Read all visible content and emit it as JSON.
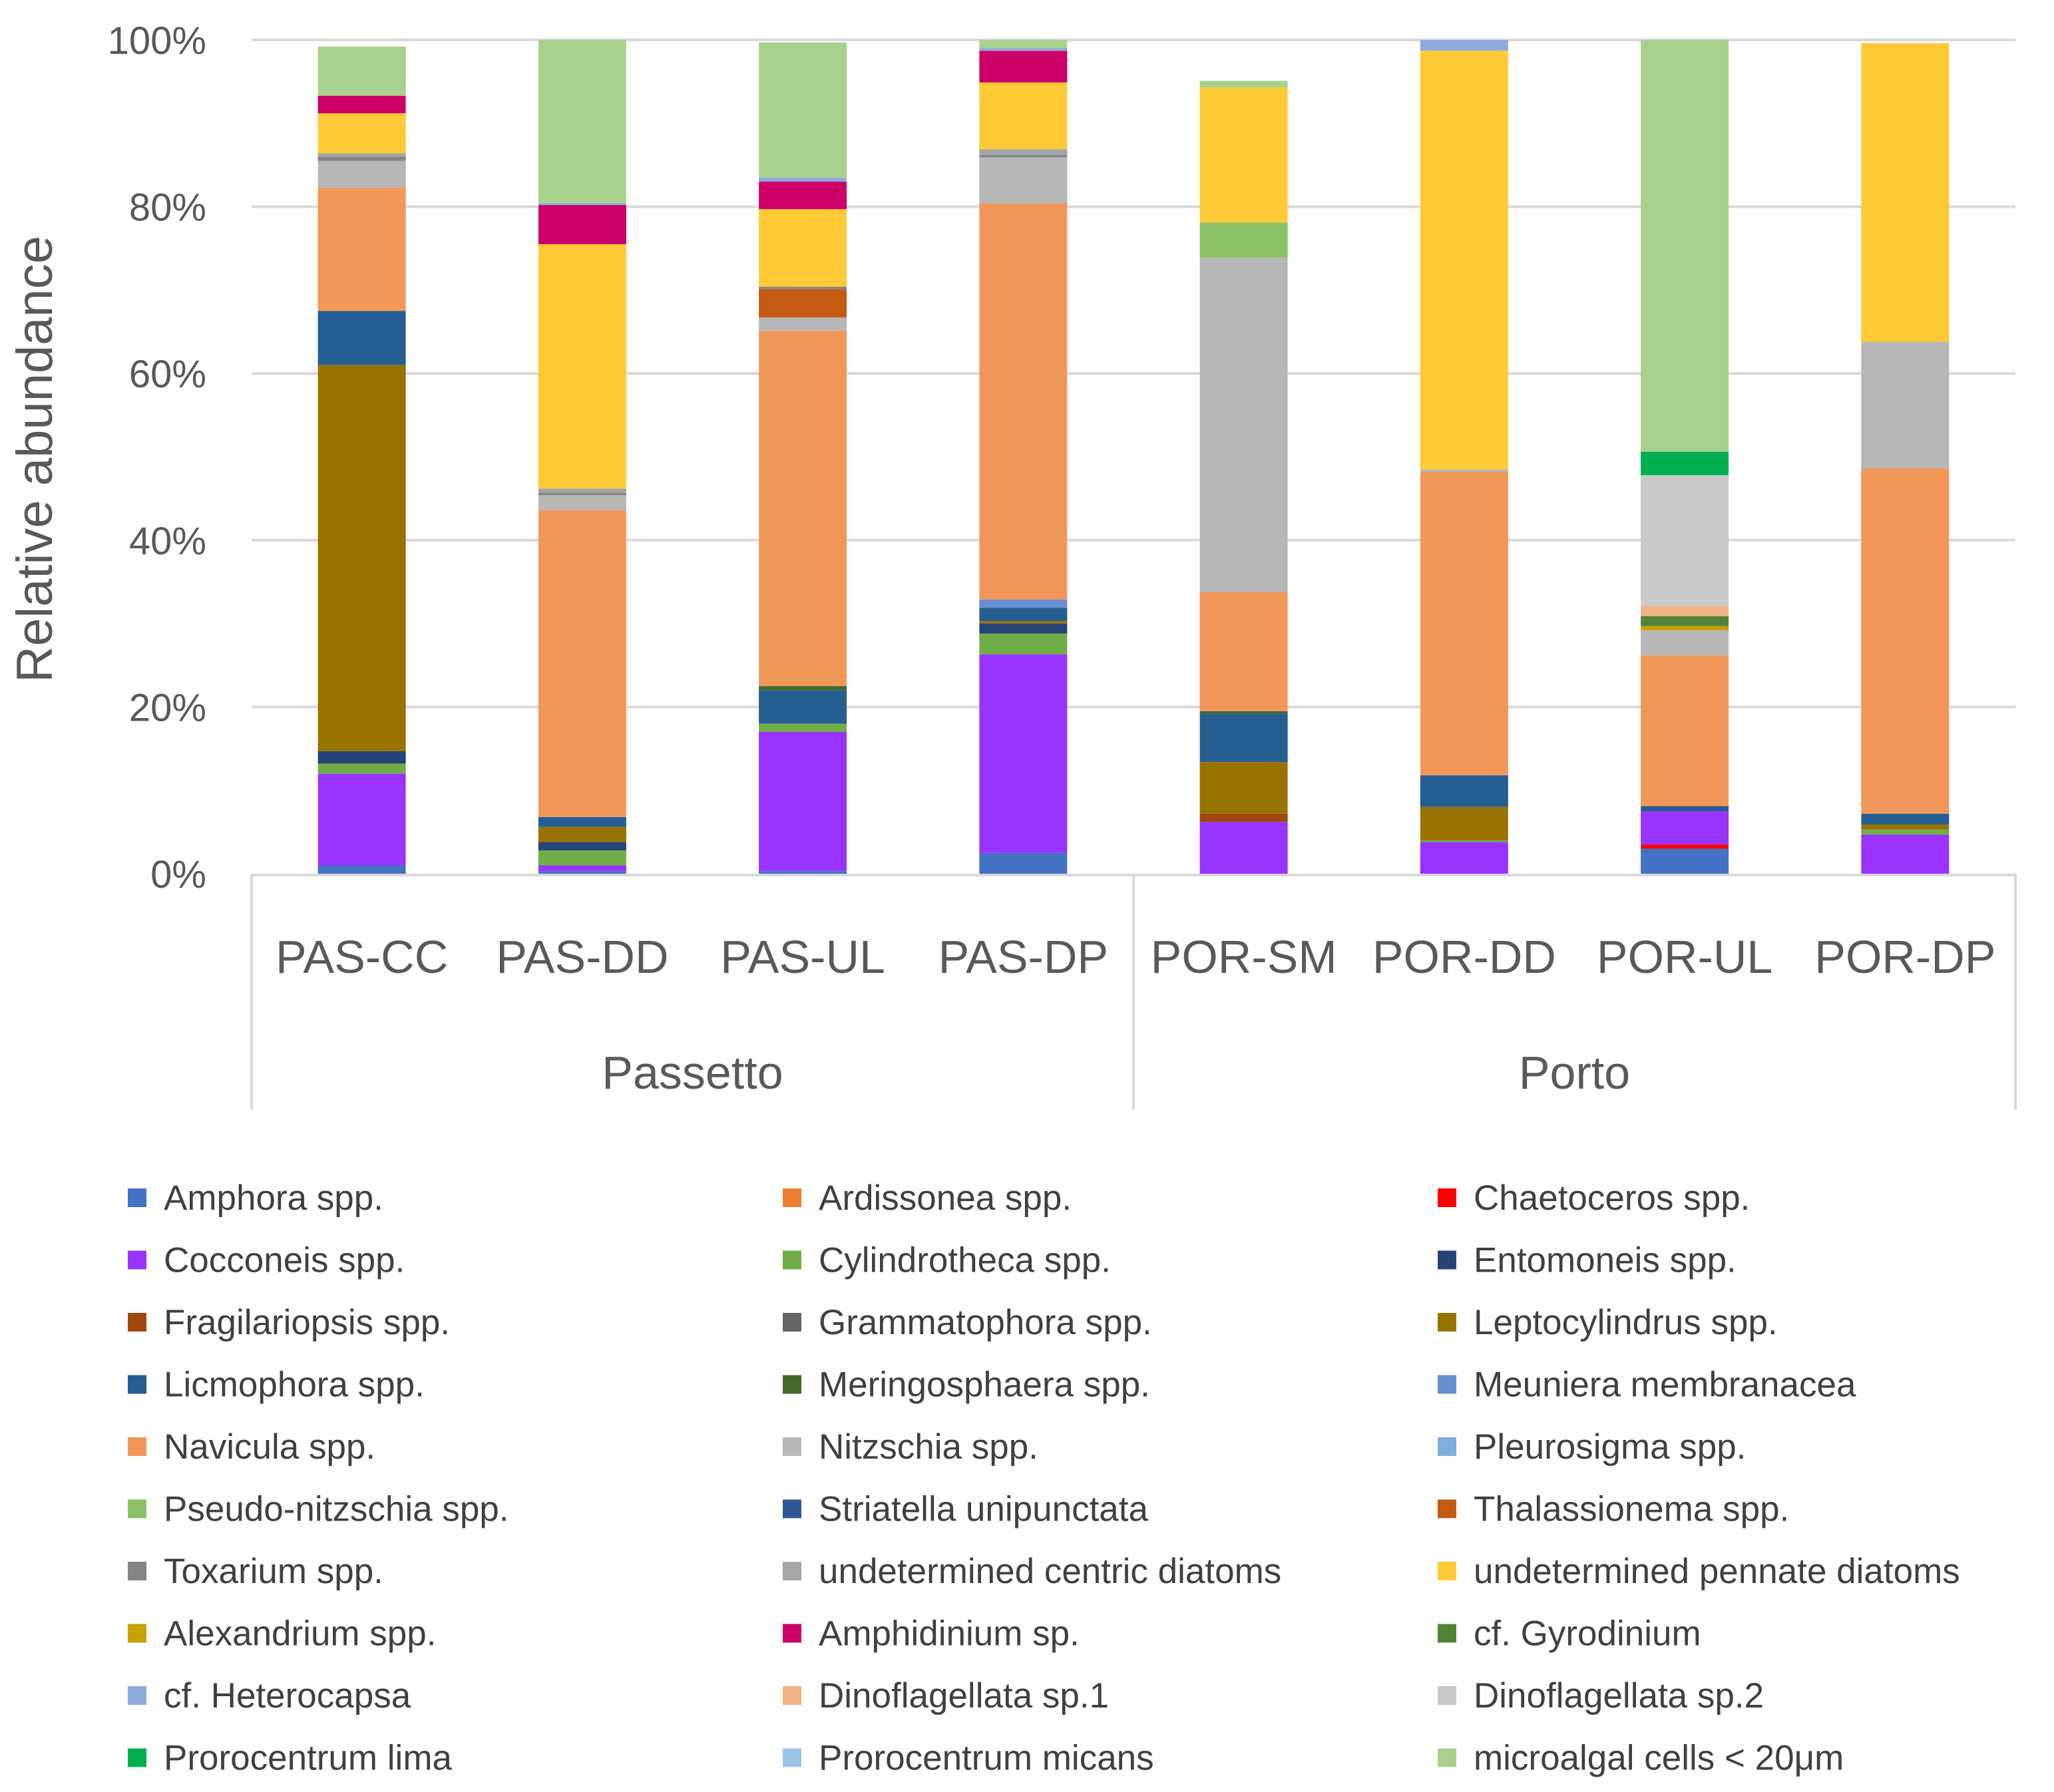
{
  "chart_data": {
    "type": "stacked-bar-100",
    "ylabel": "Relative abundance",
    "ylim": [
      0,
      100
    ],
    "yticks": [
      "0%",
      "20%",
      "40%",
      "60%",
      "80%",
      "100%"
    ],
    "categories": [
      "PAS-CC",
      "PAS-DD",
      "PAS-UL",
      "PAS-DP",
      "POR-SM",
      "POR-DD",
      "POR-UL",
      "POR-DP"
    ],
    "groups": [
      {
        "name": "Passetto",
        "categories": [
          "PAS-CC",
          "PAS-DD",
          "PAS-UL",
          "PAS-DP"
        ]
      },
      {
        "name": "Porto",
        "categories": [
          "POR-SM",
          "POR-DD",
          "POR-UL",
          "POR-DP"
        ]
      }
    ],
    "legend_position": "bottom",
    "series": [
      {
        "name": "Amphora spp.",
        "color": "#4472C4",
        "values": [
          1.0,
          0.3,
          0.3,
          2.5,
          0,
          0,
          3.0,
          0
        ]
      },
      {
        "name": "Ardissonea spp.",
        "color": "#ED7D31",
        "values": [
          0,
          0,
          0,
          0,
          0,
          0,
          0,
          0
        ]
      },
      {
        "name": "Chaetoceros spp.",
        "color": "#FF0000",
        "values": [
          0,
          0,
          0,
          0,
          0,
          0,
          0.5,
          0
        ]
      },
      {
        "name": "Cocconeis spp.",
        "color": "#9933FF",
        "values": [
          11.0,
          0.7,
          16.7,
          23.8,
          6.2,
          3.8,
          4.0,
          4.7
        ]
      },
      {
        "name": "Cylindrotheca spp.",
        "color": "#70AD47",
        "values": [
          1.2,
          1.8,
          1.0,
          2.5,
          0,
          0.2,
          0,
          0.6
        ]
      },
      {
        "name": "Entomoneis spp.",
        "color": "#264478",
        "values": [
          1.5,
          1.0,
          0,
          1.2,
          0,
          0,
          0,
          0
        ]
      },
      {
        "name": "Fragilariopsis spp.",
        "color": "#9E480E",
        "values": [
          0,
          0,
          0,
          0,
          1.0,
          0,
          0,
          0
        ]
      },
      {
        "name": "Grammatophora spp.",
        "color": "#636363",
        "values": [
          0,
          0,
          0,
          0,
          0,
          0,
          0,
          0
        ]
      },
      {
        "name": "Leptocylindrus spp.",
        "color": "#997300",
        "values": [
          46.3,
          1.8,
          0,
          0.3,
          6.2,
          4.0,
          0,
          0.6
        ]
      },
      {
        "name": "Licmophora spp.",
        "color": "#255E91",
        "values": [
          6.5,
          1.2,
          4.0,
          1.6,
          5.8,
          3.8,
          0.6,
          1.3
        ]
      },
      {
        "name": "Meringosphaera spp.",
        "color": "#43682B",
        "values": [
          0,
          0,
          0.5,
          0,
          0.3,
          0,
          0,
          0
        ]
      },
      {
        "name": "Meuniera membranacea",
        "color": "#698ED0",
        "values": [
          0,
          0,
          0,
          1.0,
          0,
          0,
          0,
          0
        ]
      },
      {
        "name": "Navicula spp.",
        "color": "#F1975A",
        "values": [
          14.8,
          36.8,
          42.6,
          47.5,
          14.3,
          36.4,
          18.1,
          41.4
        ]
      },
      {
        "name": "Nitzschia spp.",
        "color": "#B7B7B7",
        "values": [
          3.2,
          1.8,
          1.6,
          5.5,
          40.1,
          0.3,
          3.0,
          15.2
        ]
      },
      {
        "name": "Pleurosigma spp.",
        "color": "#7CAFDD",
        "values": [
          0,
          0,
          0,
          0,
          0,
          0,
          0,
          0
        ]
      },
      {
        "name": "Pseudo-nitzschia spp.",
        "color": "#8CC168",
        "values": [
          0,
          0,
          0,
          0,
          4.2,
          0,
          0,
          0
        ]
      },
      {
        "name": "Striatella unipunctata",
        "color": "#2F5597",
        "values": [
          0,
          0,
          0,
          0,
          0,
          0,
          0,
          0
        ]
      },
      {
        "name": "Thalassionema spp.",
        "color": "#C55A11",
        "values": [
          0,
          0,
          3.4,
          0,
          0,
          0,
          0,
          0
        ]
      },
      {
        "name": "Toxarium spp.",
        "color": "#848484",
        "values": [
          0.5,
          0.3,
          0.3,
          0.3,
          0,
          0,
          0,
          0
        ]
      },
      {
        "name": "undetermined centric diatoms",
        "color": "#A5A5A5",
        "values": [
          0.4,
          0.5,
          0,
          0.7,
          0,
          0,
          0,
          0
        ]
      },
      {
        "name": "undetermined pennate diatoms",
        "color": "#FFCA35",
        "values": [
          4.8,
          29.3,
          9.3,
          8.0,
          16.2,
          50.2,
          0,
          35.8
        ]
      },
      {
        "name": "Alexandrium spp.",
        "color": "#C9A100",
        "values": [
          0,
          0,
          0,
          0,
          0,
          0,
          0.5,
          0
        ]
      },
      {
        "name": "Amphidinium sp.",
        "color": "#CC0066",
        "values": [
          2.1,
          4.7,
          3.3,
          3.8,
          0,
          0,
          0,
          0
        ]
      },
      {
        "name": "cf. Gyrodinium",
        "color": "#548235",
        "values": [
          0,
          0,
          0,
          0,
          0,
          0,
          1.2,
          0
        ]
      },
      {
        "name": "cf. Heterocapsa",
        "color": "#8FAADC",
        "values": [
          0,
          0.2,
          0.5,
          0.3,
          0,
          1.3,
          0,
          0
        ]
      },
      {
        "name": "Dinoflagellata sp.1",
        "color": "#F4B183",
        "values": [
          0,
          0,
          0,
          0,
          0,
          0,
          1.2,
          0
        ]
      },
      {
        "name": "Dinoflagellata sp.2",
        "color": "#C9C9C9",
        "values": [
          0,
          0,
          0,
          0,
          0,
          0,
          15.7,
          0
        ]
      },
      {
        "name": "Prorocentrum lima",
        "color": "#00B050",
        "values": [
          0,
          0,
          0,
          0,
          0,
          0,
          2.8,
          0
        ]
      },
      {
        "name": "Prorocentrum micans",
        "color": "#9DC3E6",
        "values": [
          0,
          0,
          0,
          0,
          0,
          0,
          0,
          0
        ]
      },
      {
        "name": "microalgal cells < 20μm",
        "color": "#A9D18E",
        "values": [
          5.9,
          19.6,
          16.2,
          1.0,
          0.8,
          0,
          49.4,
          0
        ]
      }
    ]
  }
}
